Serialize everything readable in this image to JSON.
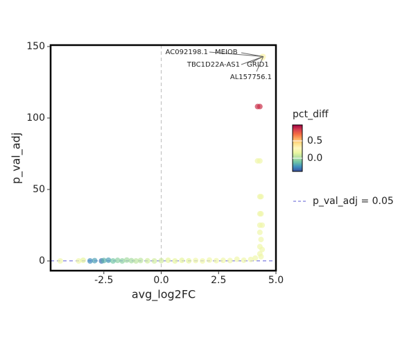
{
  "chart_data": {
    "type": "scatter",
    "x_label": "avg_log2FC",
    "y_label": "p_val_adj",
    "xlim": [
      -4.82,
      5.0
    ],
    "ylim": [
      -6.8,
      151
    ],
    "xticks": [
      -2.5,
      {
        "value": 0,
        "label": "0.0"
      },
      2.5,
      {
        "value": 5,
        "label": "5.0"
      }
    ],
    "yticks": [
      0,
      50,
      100,
      150
    ],
    "x": [
      4.45,
      4.4,
      4.42,
      4.2,
      4.3,
      4.2,
      4.3,
      4.3,
      4.35,
      4.3,
      4.35,
      4.3,
      4.4,
      4.3,
      4.35,
      4.3,
      4.4,
      4.3,
      4.35,
      -4.4,
      -3.6,
      -3.4,
      -3.1,
      -2.9,
      -2.6,
      -2.5,
      -2.3,
      -2.1,
      -1.9,
      -1.7,
      -1.5,
      -1.3,
      -1.1,
      -0.9,
      -0.6,
      -0.3,
      0.0,
      0.3,
      0.6,
      0.9,
      1.2,
      1.5,
      1.8,
      2.1,
      2.4,
      2.7,
      3.0,
      3.3,
      3.6,
      3.9,
      4.1
    ],
    "values": [
      143,
      143,
      142,
      108,
      108,
      70,
      70,
      45,
      45,
      33,
      33,
      25,
      25,
      20,
      15,
      10,
      8,
      5,
      3,
      0,
      0,
      0.5,
      0,
      0.2,
      0,
      0.3,
      0.5,
      0,
      0.4,
      0,
      0.6,
      0.2,
      0,
      0.3,
      0.1,
      0,
      0.2,
      0.5,
      0,
      0.4,
      0.1,
      0.3,
      0,
      0.6,
      0.2,
      0.4,
      0.3,
      1.2,
      0.5,
      1.0,
      2.0
    ],
    "pct_diff": [
      0.3,
      0.25,
      0.3,
      0.85,
      0.85,
      0.2,
      0.2,
      0.2,
      0.2,
      0.2,
      0.2,
      0.2,
      0.2,
      0.2,
      0.2,
      0.2,
      0.2,
      0.2,
      0.2,
      0.2,
      0.2,
      0.15,
      -0.25,
      -0.2,
      -0.3,
      -0.15,
      -0.2,
      -0.1,
      -0.05,
      -0.05,
      0.0,
      0.0,
      0.05,
      0.05,
      0.1,
      0.1,
      0.1,
      0.15,
      0.15,
      0.15,
      0.15,
      0.2,
      0.2,
      0.2,
      0.2,
      0.2,
      0.2,
      0.2,
      0.2,
      0.2,
      0.2
    ],
    "color_label": "pct_diff",
    "color_range": [
      -0.38,
      0.96
    ],
    "color_ticks": [
      {
        "value": 0,
        "label": "0.0"
      },
      0.5
    ],
    "colorscale": [
      "#3a4e9e",
      "#3f8fbf",
      "#6fc4a6",
      "#b2e0a2",
      "#e9f6a0",
      "#fff7c0",
      "#fee08b",
      "#fdae61",
      "#f46d43",
      "#d53e4f",
      "#9e0142"
    ],
    "hline": {
      "value": 0.05,
      "label": "p_val_adj = 0.05",
      "color": "#5b5bd6"
    },
    "vline": {
      "value": 0,
      "color": "#bbbbbb"
    },
    "annotations": [
      {
        "text": "AC092198.1",
        "x": 4.45,
        "y": 143
      },
      {
        "text": "MEIOB",
        "x": 4.45,
        "y": 143
      },
      {
        "text": "TBC1D22A-AS1",
        "x": 4.45,
        "y": 143
      },
      {
        "text": "GRID1",
        "x": 4.45,
        "y": 143
      },
      {
        "text": "AL157756.1",
        "x": 4.45,
        "y": 143
      }
    ]
  }
}
